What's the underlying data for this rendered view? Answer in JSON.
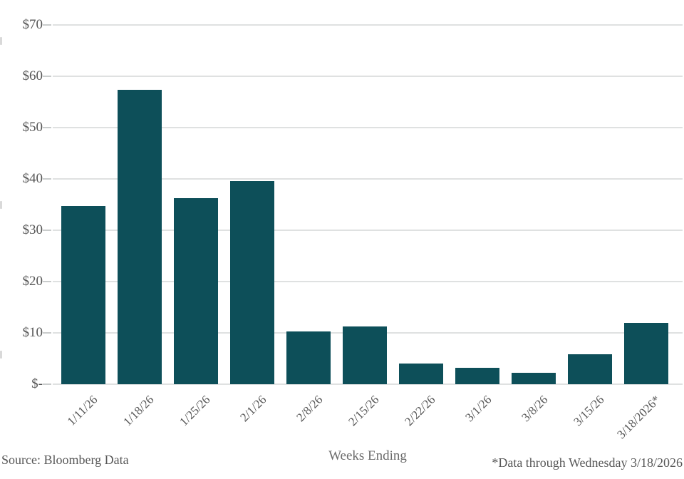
{
  "chart_data": {
    "type": "bar",
    "title": "",
    "xlabel": "Weeks Ending",
    "ylabel": "",
    "categories": [
      "1/11/26",
      "1/18/26",
      "1/25/26",
      "2/1/26",
      "2/8/26",
      "2/15/26",
      "2/22/26",
      "3/1/26",
      "3/8/26",
      "3/15/26",
      "3/18/2026*"
    ],
    "values": [
      34.7,
      57.3,
      36.3,
      39.6,
      10.3,
      11.2,
      4.0,
      3.2,
      2.2,
      5.8,
      12.0
    ],
    "ylim": [
      0,
      70
    ],
    "ytick_values": [
      0,
      10,
      20,
      30,
      40,
      50,
      60,
      70
    ],
    "ytick_labels": [
      "$-",
      "$10",
      "$20",
      "$30",
      "$40",
      "$50",
      "$60",
      "$70"
    ],
    "grid": true,
    "legend": "none",
    "bar_color": "#0d4f59",
    "gridline_color": "#dfe1e1",
    "text_color": "#575757"
  },
  "footer": {
    "source": "Source: Bloomberg Data",
    "x_axis_title": "Weeks Ending",
    "footnote": "*Data through Wednesday 3/18/2026"
  }
}
